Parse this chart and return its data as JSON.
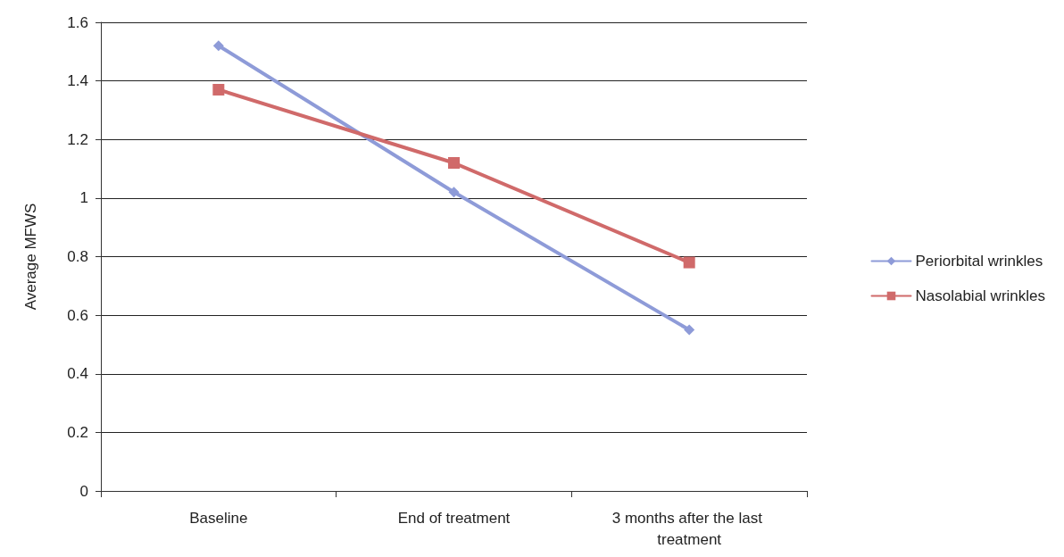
{
  "chart_data": {
    "type": "line",
    "ylabel": "Average MFWS",
    "categories": [
      "Baseline",
      "End of treatment",
      "3 months after the last treatment"
    ],
    "series": [
      {
        "name": "Periorbital wrinkles",
        "color": "#8e9bd8",
        "marker": "diamond",
        "values": [
          1.52,
          1.02,
          0.55
        ]
      },
      {
        "name": "Nasolabial wrinkles",
        "color": "#d06a6a",
        "marker": "square",
        "values": [
          1.37,
          1.12,
          0.78
        ]
      }
    ],
    "ylim": [
      0,
      1.6
    ],
    "yticks": [
      0,
      0.2,
      0.4,
      0.6,
      0.8,
      1,
      1.2,
      1.4,
      1.6
    ],
    "grid": "y",
    "legend": "right"
  }
}
